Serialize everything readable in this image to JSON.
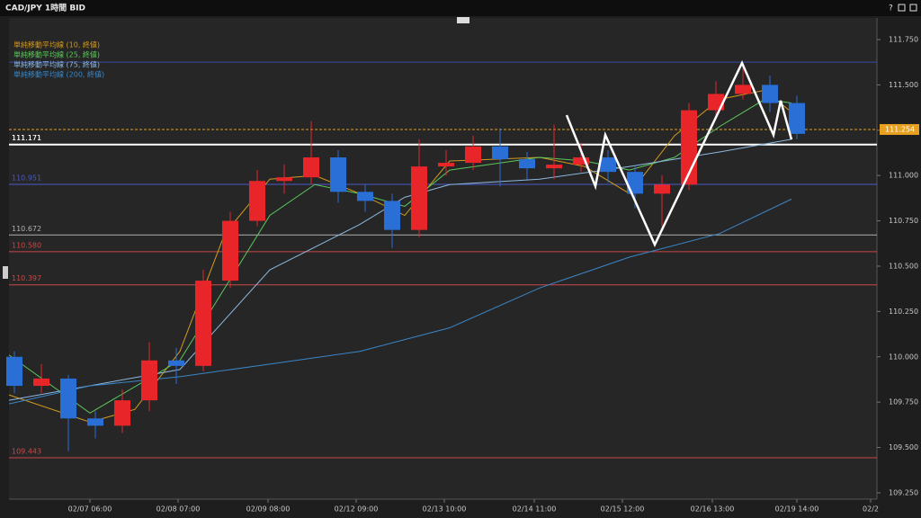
{
  "chart_data": {
    "type": "candlestick",
    "title": "CAD/JPY 1時間 BID",
    "help_icon": "?",
    "up_color": "#e8262a",
    "down_color": "#2a6fd6",
    "x": [
      1.5,
      9,
      16.5,
      24,
      31.5,
      39,
      46.5,
      54,
      61.5,
      69,
      76.5,
      84,
      91.5,
      99,
      106.5,
      114,
      121.5,
      129,
      136.5,
      144,
      151.5,
      159,
      166.5,
      174,
      181.5,
      189,
      196.5,
      204,
      211.5,
      219
    ],
    "open": [
      110.0,
      109.84,
      109.88,
      109.66,
      109.62,
      109.76,
      109.98,
      109.95,
      110.42,
      110.75,
      110.97,
      110.99,
      111.1,
      110.91,
      110.86,
      110.7,
      111.05,
      111.07,
      111.16,
      111.09,
      111.04,
      111.06,
      111.1,
      111.02,
      110.9,
      110.95,
      111.36,
      111.45,
      111.5,
      111.4
    ],
    "high": [
      110.03,
      109.96,
      109.9,
      109.7,
      109.82,
      110.08,
      110.05,
      110.48,
      110.8,
      111.03,
      111.06,
      111.3,
      111.14,
      110.95,
      110.9,
      111.2,
      111.14,
      111.22,
      111.26,
      111.13,
      111.28,
      111.18,
      111.14,
      111.05,
      111.0,
      111.4,
      111.52,
      111.6,
      111.55,
      111.44
    ],
    "low": [
      109.8,
      109.8,
      109.48,
      109.55,
      109.58,
      109.7,
      109.85,
      109.92,
      110.38,
      110.72,
      110.9,
      110.95,
      110.85,
      110.8,
      110.6,
      110.66,
      111.0,
      111.03,
      110.94,
      110.98,
      110.98,
      111.02,
      110.96,
      110.82,
      110.72,
      110.92,
      111.32,
      111.42,
      111.35,
      111.2
    ],
    "close": [
      109.84,
      109.88,
      109.66,
      109.62,
      109.76,
      109.98,
      109.95,
      110.42,
      110.75,
      110.97,
      110.99,
      111.1,
      110.91,
      110.86,
      110.7,
      111.05,
      111.07,
      111.16,
      111.09,
      111.04,
      111.06,
      111.1,
      111.02,
      110.9,
      110.95,
      111.36,
      111.45,
      111.5,
      111.4,
      111.23
    ],
    "series": [
      {
        "name": "単純移動平均線 (10, 終値)",
        "color": "#d49a1e",
        "x": [
          0,
          22.5,
          35,
          47.5,
          60,
          72.5,
          85,
          97.5,
          110,
          122.5,
          147.5,
          160,
          172.5,
          185,
          197.5,
          210,
          217.5
        ],
        "values": [
          109.79,
          109.64,
          109.71,
          110.03,
          110.68,
          110.98,
          111.0,
          110.9,
          110.78,
          111.08,
          111.1,
          111.05,
          110.9,
          111.22,
          111.42,
          111.47,
          111.35
        ]
      },
      {
        "name": "単純移動平均線 (25, 終値)",
        "color": "#5cc85c",
        "x": [
          0,
          22.5,
          47.5,
          60,
          72.5,
          85,
          97.5,
          110,
          122.5,
          147.5,
          160,
          172.5,
          185,
          197.5,
          210,
          217.5
        ],
        "values": [
          110.01,
          109.69,
          109.98,
          110.38,
          110.78,
          110.95,
          110.9,
          110.83,
          111.03,
          111.1,
          111.08,
          111.03,
          111.1,
          111.27,
          111.42,
          111.4
        ]
      },
      {
        "name": "単純移動平均線 (75, 終値)",
        "color": "#8cb8e0",
        "x": [
          0,
          47.5,
          72.5,
          97.5,
          110,
          122.5,
          147.5,
          172.5,
          197.5,
          217.5
        ],
        "values": [
          109.76,
          109.93,
          110.48,
          110.73,
          110.88,
          110.95,
          110.98,
          111.05,
          111.13,
          111.2
        ]
      },
      {
        "name": "単純移動平均線 (200, 終値)",
        "color": "#3a86c8",
        "x": [
          0,
          22.5,
          47.5,
          72.5,
          97.5,
          122.5,
          147.5,
          172.5,
          197.5,
          217.5
        ],
        "values": [
          109.74,
          109.84,
          109.89,
          109.96,
          110.03,
          110.16,
          110.38,
          110.55,
          110.68,
          110.87
        ]
      }
    ],
    "hlines": [
      {
        "value": 111.625,
        "color": "#3a4aa8"
      },
      {
        "value": 111.171,
        "color": "#ffffff",
        "width": 2
      },
      {
        "value": 110.951,
        "color": "#4a5ac8"
      },
      {
        "value": 110.672,
        "color": "#b0b0b0"
      },
      {
        "value": 110.58,
        "label": "110.580",
        "color": "#c84848"
      },
      {
        "value": 110.397,
        "color": "#c84848"
      },
      {
        "value": 109.443,
        "color": "#c84848"
      }
    ],
    "current_price": 111.254,
    "current_color": "#e8a020",
    "drawing": {
      "color": "#ffffff",
      "x": [
        155,
        163,
        165.75,
        179.5,
        203.75,
        212.5,
        214.5,
        217.5
      ],
      "values": [
        111.333,
        110.941,
        111.224,
        110.619,
        111.621,
        111.224,
        111.413,
        111.199
      ]
    },
    "xlim": [
      0,
      240
    ],
    "xticks": [
      {
        "value": 22.5,
        "label": "02/07 06:00"
      },
      {
        "value": 47,
        "label": "02/08 07:00"
      },
      {
        "value": 72,
        "label": "02/09 08:00"
      },
      {
        "value": 96.5,
        "label": "02/12 09:00"
      },
      {
        "value": 121,
        "label": "02/13 10:00"
      },
      {
        "value": 146,
        "label": "02/14 11:00"
      },
      {
        "value": 170.5,
        "label": "02/15 12:00"
      },
      {
        "value": 195.5,
        "label": "02/16 13:00"
      },
      {
        "value": 219,
        "label": "02/19 14:00"
      },
      {
        "value": 239.5,
        "label": "02/2"
      }
    ],
    "ylim": [
      109.215,
      111.869
    ],
    "yticks": [
      {
        "value": 109.25,
        "label": "109.250"
      },
      {
        "value": 109.5,
        "label": "109.500"
      },
      {
        "value": 109.75,
        "label": "109.750"
      },
      {
        "value": 110,
        "label": "110.000"
      },
      {
        "value": 110.25,
        "label": "110.250"
      },
      {
        "value": 110.5,
        "label": "110.500"
      },
      {
        "value": 110.75,
        "label": "110.750"
      },
      {
        "value": 111,
        "label": "111.000"
      },
      {
        "value": 111.25,
        "label": "111.250"
      },
      {
        "value": 111.5,
        "label": "111.500"
      },
      {
        "value": 111.75,
        "label": "111.750"
      }
    ]
  }
}
